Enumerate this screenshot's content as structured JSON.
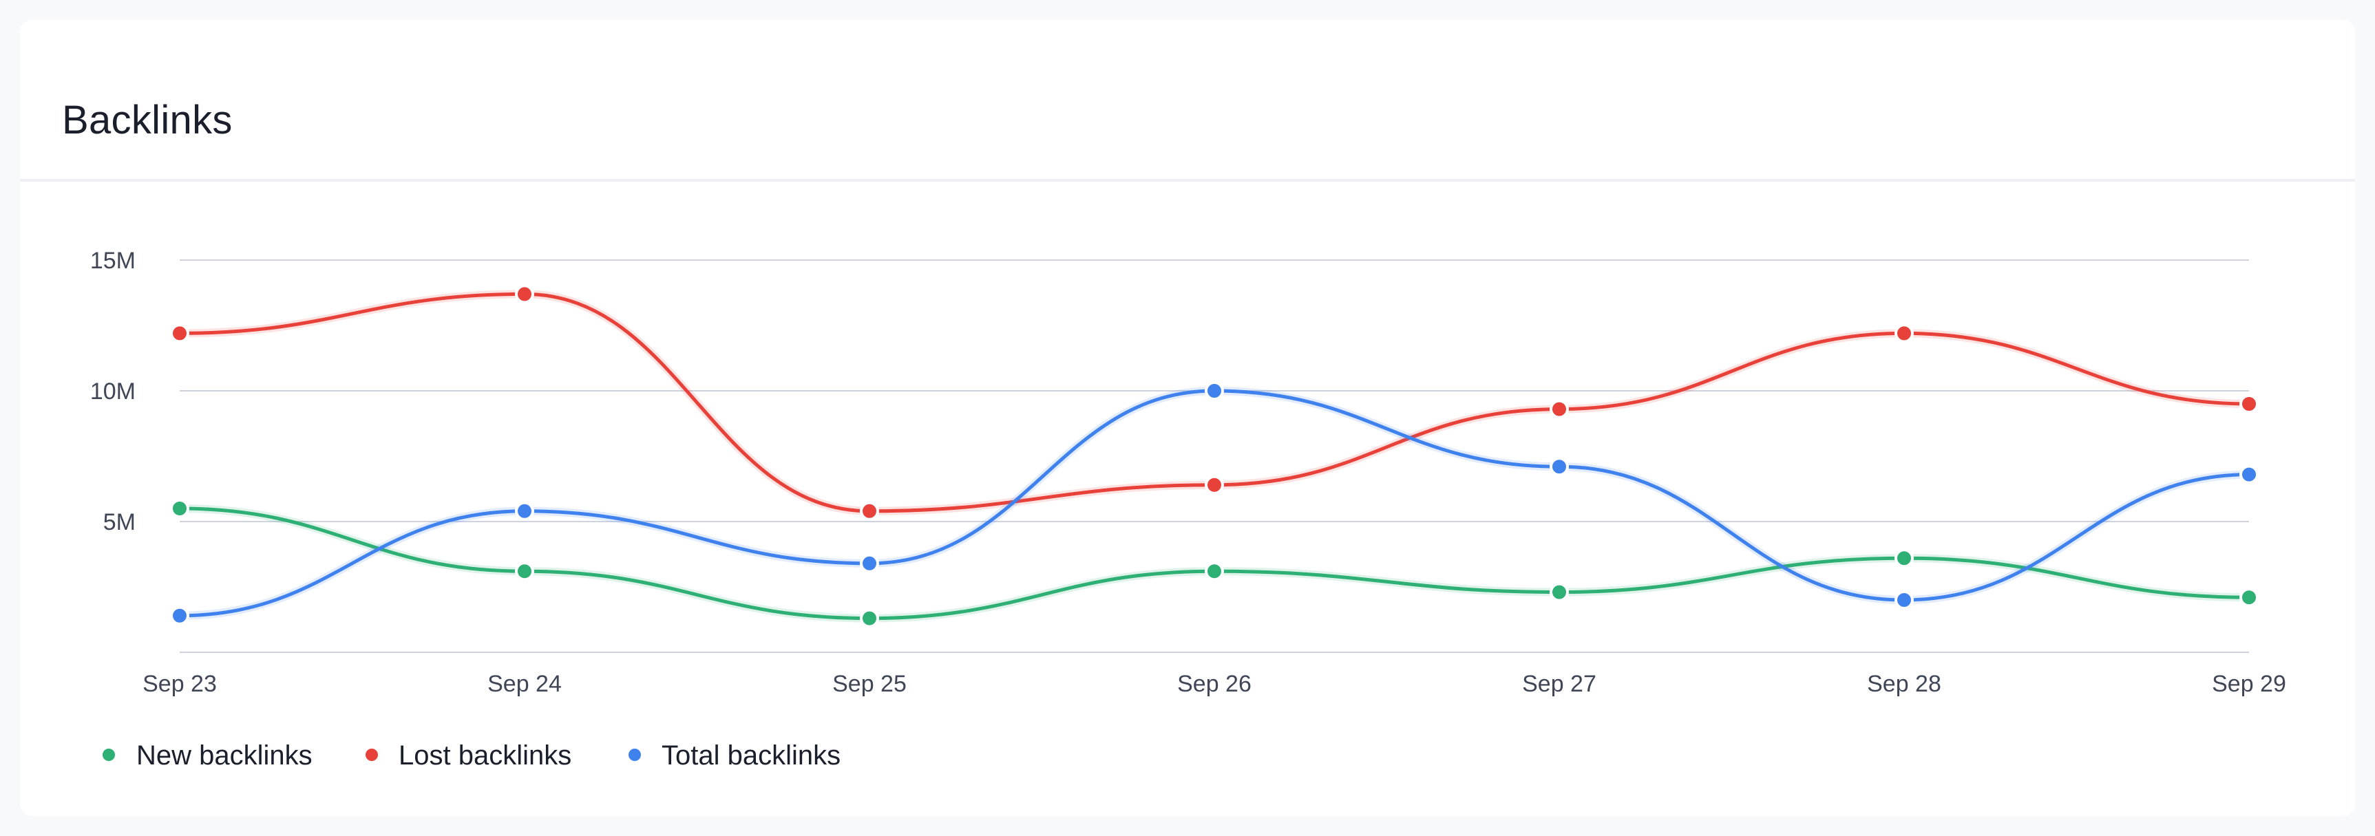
{
  "card": {
    "title": "Backlinks"
  },
  "chart_data": {
    "type": "line",
    "title": "Backlinks",
    "xlabel": "",
    "ylabel": "",
    "categories": [
      "Sep 23",
      "Sep 24",
      "Sep 25",
      "Sep 26",
      "Sep 27",
      "Sep 28",
      "Sep 29"
    ],
    "ylim": [
      0,
      15
    ],
    "yticks": [
      5,
      10,
      15
    ],
    "ytick_labels": [
      "5M",
      "10M",
      "15M"
    ],
    "grid": true,
    "legend_position": "bottom-left",
    "smooth": true,
    "series": [
      {
        "name": "New backlinks",
        "color": "#2eaf74",
        "values": [
          5.5,
          3.1,
          1.3,
          3.1,
          2.3,
          3.6,
          2.1
        ]
      },
      {
        "name": "Lost backlinks",
        "color": "#e8413a",
        "values": [
          12.2,
          13.7,
          5.4,
          6.4,
          9.3,
          12.2,
          9.5
        ]
      },
      {
        "name": "Total backlinks",
        "color": "#3f82ee",
        "values": [
          1.4,
          5.4,
          3.4,
          10.0,
          7.1,
          2.0,
          6.8
        ]
      }
    ]
  }
}
